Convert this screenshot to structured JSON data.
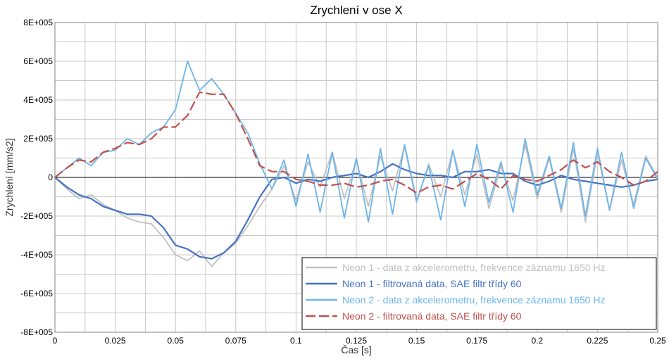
{
  "chart_data": {
    "type": "line",
    "title": "Zrychlení v ose X",
    "xlabel": "Čas [s]",
    "ylabel": "Zrychlení [mm/s2]",
    "xlim": [
      0,
      0.25
    ],
    "ylim": [
      -800000,
      800000
    ],
    "x_ticks": [
      0,
      0.025,
      0.05,
      0.075,
      0.1,
      0.125,
      0.15,
      0.175,
      0.2,
      0.225,
      0.25
    ],
    "x_tick_labels": [
      "0",
      "0.025",
      "0.05",
      "0.075",
      "0.1",
      "0.125",
      "0.15",
      "0.175",
      "0.2",
      "0.225",
      "0.25"
    ],
    "y_ticks": [
      -800000,
      -600000,
      -400000,
      -200000,
      0,
      200000,
      400000,
      600000,
      800000
    ],
    "y_tick_labels": [
      "-8E+005",
      "-6E+005",
      "-4E+005",
      "-2E+005",
      "0",
      "2E+005",
      "4E+005",
      "6E+005",
      "8E+005"
    ],
    "grid": true,
    "legend_position": "bottom-right",
    "series": [
      {
        "name": "Neon 1 - data z akcelerometru, frekvence záznamu 1650 Hz",
        "color": "#c0c0c0",
        "style": "solid",
        "x": [
          0,
          0.005,
          0.01,
          0.015,
          0.02,
          0.025,
          0.03,
          0.035,
          0.04,
          0.045,
          0.05,
          0.055,
          0.06,
          0.065,
          0.07,
          0.075,
          0.08,
          0.085,
          0.09,
          0.095,
          0.1,
          0.105,
          0.11,
          0.115,
          0.12,
          0.125,
          0.13,
          0.135,
          0.14,
          0.145,
          0.15,
          0.155,
          0.16,
          0.165,
          0.17,
          0.175,
          0.18,
          0.185,
          0.19,
          0.195,
          0.2,
          0.205,
          0.21,
          0.215,
          0.22,
          0.225,
          0.23,
          0.235,
          0.24,
          0.245,
          0.25
        ],
        "y": [
          0,
          -60000,
          -110000,
          -90000,
          -140000,
          -170000,
          -210000,
          -230000,
          -240000,
          -310000,
          -400000,
          -430000,
          -380000,
          -460000,
          -390000,
          -340000,
          -250000,
          -150000,
          -60000,
          60000,
          -120000,
          80000,
          -50000,
          130000,
          -110000,
          90000,
          -150000,
          110000,
          -70000,
          160000,
          -130000,
          70000,
          -100000,
          140000,
          -90000,
          120000,
          -160000,
          60000,
          -120000,
          170000,
          -110000,
          100000,
          -180000,
          150000,
          -230000,
          130000,
          -170000,
          90000,
          -140000,
          110000,
          0
        ]
      },
      {
        "name": "Neon 1 - filtrovaná data, SAE filtr třídy 60",
        "color": "#4472c4",
        "style": "solid",
        "x": [
          0,
          0.005,
          0.01,
          0.015,
          0.02,
          0.025,
          0.03,
          0.035,
          0.04,
          0.045,
          0.05,
          0.055,
          0.06,
          0.065,
          0.07,
          0.075,
          0.08,
          0.085,
          0.09,
          0.095,
          0.1,
          0.105,
          0.11,
          0.115,
          0.12,
          0.125,
          0.13,
          0.135,
          0.14,
          0.145,
          0.15,
          0.155,
          0.16,
          0.165,
          0.17,
          0.175,
          0.18,
          0.185,
          0.19,
          0.195,
          0.2,
          0.205,
          0.21,
          0.215,
          0.22,
          0.225,
          0.23,
          0.235,
          0.24,
          0.245,
          0.25
        ],
        "y": [
          0,
          -50000,
          -90000,
          -110000,
          -150000,
          -170000,
          -190000,
          -190000,
          -200000,
          -260000,
          -350000,
          -370000,
          -410000,
          -420000,
          -390000,
          -330000,
          -220000,
          -100000,
          -10000,
          0,
          -30000,
          -10000,
          -20000,
          0,
          10000,
          20000,
          0,
          30000,
          70000,
          40000,
          20000,
          10000,
          10000,
          0,
          30000,
          30000,
          40000,
          20000,
          20000,
          -20000,
          -40000,
          -20000,
          10000,
          -10000,
          -20000,
          -30000,
          -40000,
          -50000,
          -40000,
          -20000,
          -10000
        ]
      },
      {
        "name": "Neon 2 - data z akcelerometru, frekvence záznamu 1650 Hz",
        "color": "#6cb4ec",
        "style": "solid",
        "x": [
          0,
          0.005,
          0.01,
          0.015,
          0.02,
          0.025,
          0.03,
          0.035,
          0.04,
          0.045,
          0.05,
          0.055,
          0.06,
          0.065,
          0.07,
          0.075,
          0.08,
          0.085,
          0.09,
          0.095,
          0.1,
          0.105,
          0.11,
          0.115,
          0.12,
          0.125,
          0.13,
          0.135,
          0.14,
          0.145,
          0.15,
          0.155,
          0.16,
          0.165,
          0.17,
          0.175,
          0.18,
          0.185,
          0.19,
          0.195,
          0.2,
          0.205,
          0.21,
          0.215,
          0.22,
          0.225,
          0.23,
          0.235,
          0.24,
          0.245,
          0.25
        ],
        "y": [
          0,
          50000,
          100000,
          60000,
          130000,
          140000,
          200000,
          170000,
          230000,
          260000,
          350000,
          600000,
          450000,
          510000,
          430000,
          330000,
          230000,
          70000,
          -60000,
          90000,
          -150000,
          120000,
          -180000,
          130000,
          -210000,
          100000,
          -230000,
          150000,
          -190000,
          170000,
          -120000,
          60000,
          -220000,
          140000,
          -150000,
          170000,
          -130000,
          80000,
          -180000,
          200000,
          -90000,
          110000,
          -160000,
          180000,
          -200000,
          150000,
          -170000,
          130000,
          -160000,
          100000,
          -10000
        ]
      },
      {
        "name": "Neon 2 - filtrovaná data, SAE filtr třídy 60",
        "color": "#c0504d",
        "style": "dashed",
        "x": [
          0,
          0.005,
          0.01,
          0.015,
          0.02,
          0.025,
          0.03,
          0.035,
          0.04,
          0.045,
          0.05,
          0.055,
          0.06,
          0.065,
          0.07,
          0.075,
          0.08,
          0.085,
          0.09,
          0.095,
          0.1,
          0.105,
          0.11,
          0.115,
          0.12,
          0.125,
          0.13,
          0.135,
          0.14,
          0.145,
          0.15,
          0.155,
          0.16,
          0.165,
          0.17,
          0.175,
          0.18,
          0.185,
          0.19,
          0.195,
          0.2,
          0.205,
          0.21,
          0.215,
          0.22,
          0.225,
          0.23,
          0.235,
          0.24,
          0.245,
          0.25
        ],
        "y": [
          0,
          50000,
          90000,
          80000,
          130000,
          150000,
          180000,
          170000,
          200000,
          260000,
          260000,
          320000,
          440000,
          430000,
          430000,
          330000,
          200000,
          60000,
          30000,
          30000,
          -10000,
          -20000,
          -40000,
          -40000,
          -30000,
          -50000,
          -40000,
          -20000,
          -10000,
          -40000,
          -80000,
          -50000,
          -40000,
          -60000,
          -20000,
          20000,
          -10000,
          -60000,
          10000,
          -10000,
          -20000,
          10000,
          40000,
          90000,
          50000,
          80000,
          30000,
          0,
          -40000,
          -20000,
          30000
        ]
      }
    ]
  }
}
